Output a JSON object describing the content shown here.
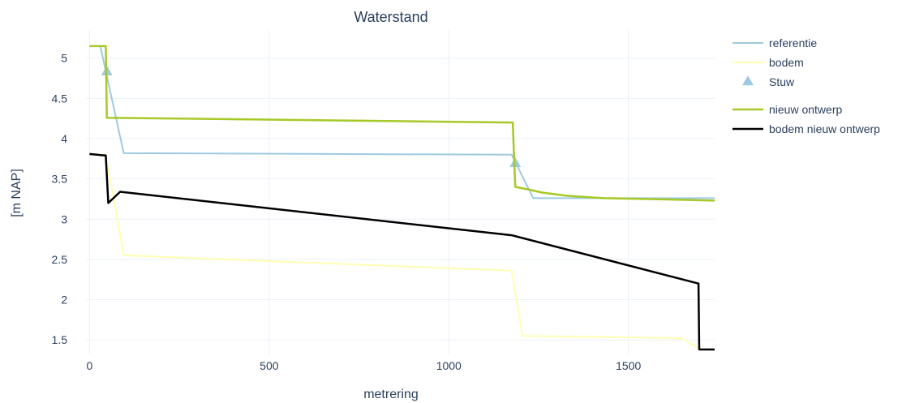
{
  "chart_data": {
    "type": "line",
    "title": "Waterstand",
    "xlabel": "metrering",
    "ylabel": "[m NAP]",
    "xlim": [
      -10,
      1740
    ],
    "ylim": [
      1.32,
      5.35
    ],
    "xticks": [
      0,
      500,
      1000,
      1500
    ],
    "xtick_labels": [
      "0",
      "500",
      "1000",
      "1500"
    ],
    "yticks": [
      1.5,
      2,
      2.5,
      3,
      3.5,
      4,
      4.5,
      5
    ],
    "ytick_labels": [
      "1.5",
      "2",
      "2.5",
      "3",
      "3.5",
      "4",
      "4.5",
      "5"
    ],
    "grid": true,
    "legend_position": "right",
    "series": [
      {
        "name": "referentie",
        "kind": "line",
        "color": "#9ecae1",
        "width": 2,
        "x": [
          0,
          30,
          95,
          1175,
          1235,
          1740
        ],
        "y": [
          5.15,
          5.15,
          3.82,
          3.8,
          3.26,
          3.26
        ]
      },
      {
        "name": "bodem",
        "kind": "line",
        "color": "#ffffb2",
        "width": 2,
        "x": [
          0,
          45,
          95,
          1175,
          1205,
          1650,
          1700,
          1740
        ],
        "y": [
          3.8,
          3.8,
          2.55,
          2.36,
          1.55,
          1.52,
          1.38,
          1.38
        ]
      },
      {
        "name": "Stuw",
        "kind": "marker",
        "color": "#9ecae1",
        "x": [
          48,
          1185
        ],
        "y": [
          4.84,
          3.7
        ]
      },
      {
        "name": "nieuw ontwerp",
        "kind": "line",
        "color": "#a6c925",
        "width": 2.5,
        "x": [
          0,
          45,
          48,
          1175,
          1178,
          1185,
          1220,
          1260,
          1330,
          1430,
          1550,
          1740
        ],
        "y": [
          5.15,
          5.15,
          4.26,
          4.2,
          4.2,
          3.4,
          3.37,
          3.33,
          3.29,
          3.26,
          3.25,
          3.23
        ]
      },
      {
        "name": "bodem nieuw ontwerp",
        "kind": "line",
        "color": "#000000",
        "width": 2.5,
        "x": [
          0,
          45,
          52,
          85,
          1175,
          1695,
          1697,
          1740
        ],
        "y": [
          3.81,
          3.79,
          3.2,
          3.34,
          2.8,
          2.2,
          1.38,
          1.38
        ]
      }
    ]
  }
}
